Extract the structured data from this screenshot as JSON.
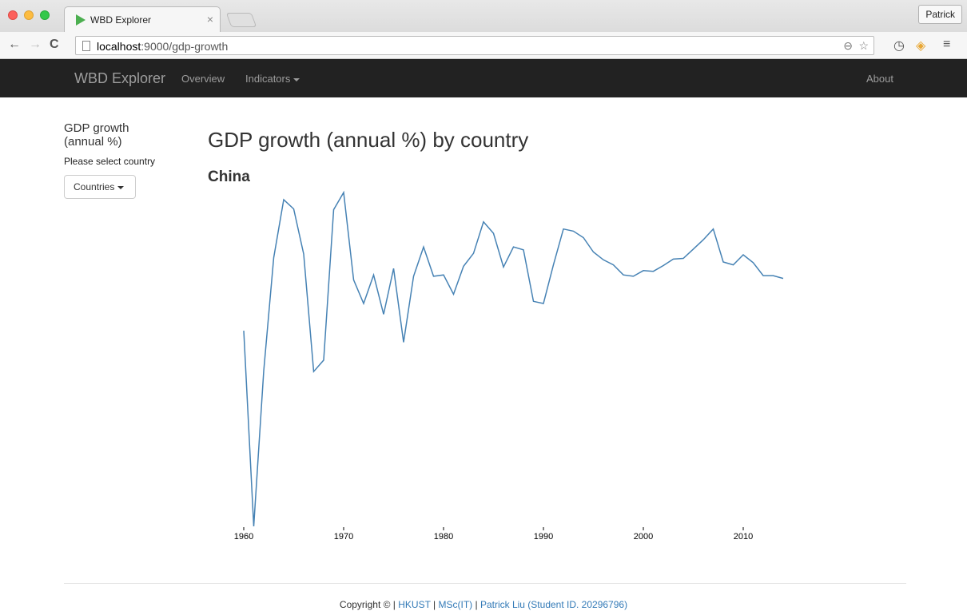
{
  "browser": {
    "tab_title": "WBD Explorer",
    "tab_close": "×",
    "profile": "Patrick",
    "url_host": "localhost",
    "url_path": ":9000/gdp-growth"
  },
  "navbar": {
    "brand": "WBD Explorer",
    "overview": "Overview",
    "indicators": "Indicators",
    "about": "About"
  },
  "sidebar": {
    "title": "GDP growth (annual %)",
    "hint": "Please select country",
    "dropdown": "Countries"
  },
  "main": {
    "title": "GDP growth (annual %) by country",
    "country": "China"
  },
  "chart_data": {
    "type": "line",
    "title": "",
    "xlabel": "",
    "ylabel": "",
    "x_ticks": [
      1960,
      1970,
      1980,
      1990,
      2000,
      2010
    ],
    "xlim": [
      1960,
      2014
    ],
    "ylim": [
      -27.3,
      19.3
    ],
    "color": "#4682b4",
    "series": [
      {
        "x": [
          1960,
          1961,
          1962,
          1963,
          1964,
          1965,
          1966,
          1967,
          1968,
          1969,
          1970,
          1971,
          1972,
          1973,
          1974,
          1975,
          1976,
          1977,
          1978,
          1979,
          1980,
          1981,
          1982,
          1983,
          1984,
          1985,
          1986,
          1987,
          1988,
          1989,
          1990,
          1991,
          1992,
          1993,
          1994,
          1995,
          1996,
          1997,
          1998,
          1999,
          2000,
          2001,
          2002,
          2003,
          2004,
          2005,
          2006,
          2007,
          2008,
          2009,
          2010,
          2011,
          2012,
          2013,
          2014
        ],
        "y": [
          0.0,
          -27.3,
          -5.6,
          10.2,
          18.3,
          17.0,
          10.7,
          -5.7,
          -4.1,
          16.9,
          19.3,
          7.1,
          3.8,
          7.8,
          2.3,
          8.7,
          -1.6,
          7.6,
          11.7,
          7.6,
          7.8,
          5.1,
          9.0,
          10.8,
          15.2,
          13.6,
          8.9,
          11.7,
          11.3,
          4.1,
          3.8,
          9.2,
          14.2,
          13.9,
          13.0,
          11.0,
          9.9,
          9.2,
          7.8,
          7.6,
          8.4,
          8.3,
          9.1,
          10.0,
          10.1,
          11.4,
          12.7,
          14.2,
          9.6,
          9.2,
          10.6,
          9.5,
          7.7,
          7.7,
          7.3
        ]
      }
    ]
  },
  "footer": {
    "prefix": "Copyright © | ",
    "hkust": "HKUST",
    "sep1": " | ",
    "msc": "MSc(IT)",
    "sep2": " | ",
    "author": "Patrick Liu (Student ID. 20296796)"
  }
}
